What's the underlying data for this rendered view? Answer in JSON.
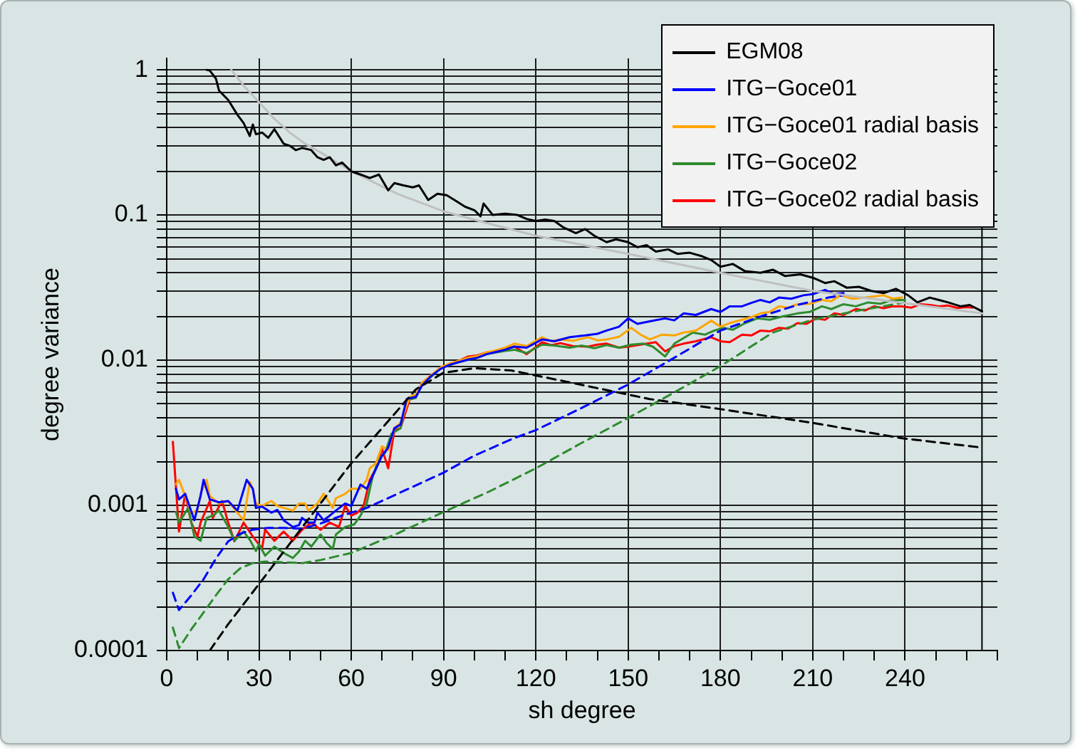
{
  "chart_data": {
    "type": "line",
    "xlabel": "sh degree",
    "ylabel": "degree variance",
    "series": [
      {
        "name": "EGM08",
        "color": "#000000",
        "x": [
          13,
          14,
          16,
          17,
          20,
          23,
          25,
          27,
          28,
          29,
          31,
          33,
          35,
          38,
          40,
          42,
          44,
          47,
          49,
          51,
          53,
          55,
          57,
          60,
          63,
          66,
          69,
          72,
          74,
          77,
          80,
          82,
          85,
          88,
          91,
          94,
          97,
          100,
          102,
          103,
          106,
          110,
          114,
          117,
          120,
          123,
          126,
          129,
          133,
          136,
          139,
          143,
          146,
          150,
          153,
          156,
          159,
          163,
          166,
          170,
          174,
          177,
          180,
          184,
          188,
          193,
          197,
          201,
          206,
          210,
          214,
          217,
          221,
          225,
          229,
          233,
          237,
          241,
          244,
          248,
          251,
          254,
          258,
          261,
          265
        ],
        "values": [
          1.0,
          0.99,
          0.87,
          0.72,
          0.62,
          0.49,
          0.43,
          0.35,
          0.42,
          0.36,
          0.37,
          0.34,
          0.39,
          0.31,
          0.3,
          0.28,
          0.29,
          0.28,
          0.25,
          0.24,
          0.25,
          0.22,
          0.23,
          0.2,
          0.19,
          0.18,
          0.19,
          0.148,
          0.166,
          0.16,
          0.155,
          0.16,
          0.127,
          0.14,
          0.137,
          0.125,
          0.114,
          0.108,
          0.098,
          0.12,
          0.1,
          0.102,
          0.1,
          0.094,
          0.091,
          0.093,
          0.091,
          0.082,
          0.075,
          0.08,
          0.072,
          0.065,
          0.068,
          0.065,
          0.06,
          0.062,
          0.056,
          0.058,
          0.054,
          0.055,
          0.052,
          0.049,
          0.044,
          0.046,
          0.041,
          0.04,
          0.042,
          0.038,
          0.039,
          0.037,
          0.034,
          0.035,
          0.0316,
          0.032,
          0.03,
          0.029,
          0.031,
          0.028,
          0.025,
          0.027,
          0.026,
          0.025,
          0.0235,
          0.024,
          0.0217
        ]
      },
      {
        "color": "#c0c0c0",
        "x": [
          21,
          25,
          30,
          35,
          40,
          45,
          50,
          60,
          75,
          90,
          105,
          120,
          150,
          180,
          210,
          240,
          265
        ],
        "values": [
          1.0,
          0.78,
          0.6,
          0.46,
          0.37,
          0.31,
          0.27,
          0.2,
          0.14,
          0.106,
          0.087,
          0.072,
          0.054,
          0.04,
          0.03,
          0.0247,
          0.021
        ]
      },
      {
        "color": "#000000",
        "line_style": "dashed",
        "x": [
          14,
          20,
          30,
          45,
          60,
          70,
          81,
          90,
          100,
          112,
          130,
          157,
          180,
          210,
          239,
          265
        ],
        "values": [
          0.0001,
          0.000152,
          0.000287,
          0.00075,
          0.00195,
          0.0034,
          0.0063,
          0.0082,
          0.0088,
          0.0085,
          0.0071,
          0.0054,
          0.0046,
          0.0037,
          0.0029,
          0.0025
        ]
      },
      {
        "name": "ITG−Goce01",
        "color": "#0000ff",
        "x": [
          3,
          4,
          6,
          9,
          11,
          12,
          14,
          17,
          20,
          23,
          26,
          28,
          29,
          31,
          34,
          36,
          38,
          41,
          43,
          44,
          46,
          48,
          49,
          51,
          53,
          55,
          58,
          60,
          63,
          65,
          67,
          70,
          72,
          74,
          76,
          78,
          81,
          83,
          86,
          89,
          92,
          95,
          98,
          101,
          104,
          107,
          110,
          113,
          117,
          122,
          126,
          131,
          136,
          140,
          143,
          147,
          150,
          153,
          157,
          162,
          165,
          168,
          172,
          177,
          180,
          183,
          187,
          190,
          193,
          196,
          199,
          203,
          207,
          210,
          214,
          217,
          220
        ],
        "values": [
          0.0013,
          0.0011,
          0.0012,
          0.00079,
          0.00116,
          0.0015,
          0.0011,
          0.00105,
          0.00107,
          0.00092,
          0.0015,
          0.0013,
          0.00096,
          0.00098,
          0.00089,
          0.00093,
          0.00079,
          0.00071,
          0.00073,
          0.00082,
          0.00076,
          0.00076,
          0.00089,
          0.00079,
          0.00085,
          0.00092,
          0.00103,
          0.00099,
          0.00139,
          0.0013,
          0.0016,
          0.0022,
          0.0025,
          0.0034,
          0.0036,
          0.0054,
          0.0056,
          0.0067,
          0.0078,
          0.0087,
          0.0093,
          0.0097,
          0.0101,
          0.0104,
          0.011,
          0.0114,
          0.0118,
          0.0124,
          0.0122,
          0.0139,
          0.0135,
          0.0144,
          0.0148,
          0.0152,
          0.016,
          0.017,
          0.0194,
          0.0178,
          0.0185,
          0.0194,
          0.0188,
          0.021,
          0.0205,
          0.0225,
          0.0215,
          0.0235,
          0.0235,
          0.0248,
          0.026,
          0.025,
          0.027,
          0.0265,
          0.028,
          0.0285,
          0.0305,
          0.0285,
          0.029
        ]
      },
      {
        "color": "#0000ff",
        "line_style": "dashed",
        "x": [
          2,
          4,
          8,
          12,
          16,
          20,
          24,
          28,
          33,
          38,
          44,
          50,
          57,
          65,
          75,
          90,
          100,
          112,
          120,
          135,
          150,
          165,
          180,
          193,
          205,
          215,
          220
        ],
        "values": [
          0.00025,
          0.00019,
          0.00024,
          0.00031,
          0.00043,
          0.000565,
          0.00064,
          0.00068,
          0.0007,
          0.0007,
          0.00069,
          0.00075,
          0.00085,
          0.00096,
          0.0012,
          0.00168,
          0.0022,
          0.00285,
          0.0033,
          0.0047,
          0.0068,
          0.0104,
          0.016,
          0.02,
          0.024,
          0.027,
          0.028
        ]
      },
      {
        "name": "ITG−Goce01 radial basis",
        "color": "#ffa500",
        "x": [
          3,
          4,
          6,
          8,
          10,
          11,
          13,
          14,
          17,
          20,
          23,
          25,
          27,
          28,
          29,
          31,
          34,
          36,
          38,
          41,
          43,
          45,
          46,
          48,
          49,
          51,
          54,
          55,
          58,
          60,
          63,
          65,
          66,
          68,
          70,
          72,
          74,
          76,
          79,
          81,
          83,
          86,
          89,
          92,
          95,
          98,
          101,
          104,
          107,
          110,
          113,
          117,
          122,
          125,
          128,
          132,
          137,
          140,
          143,
          147,
          151,
          154,
          157,
          161,
          165,
          168,
          172,
          177,
          180,
          183,
          187,
          190,
          193,
          196,
          199,
          202,
          205,
          209,
          213,
          216,
          219,
          223,
          227,
          230,
          233,
          236,
          239
        ],
        "values": [
          0.0014,
          0.0015,
          0.00116,
          0.00089,
          0.00092,
          0.0012,
          0.0015,
          0.00116,
          0.00103,
          0.00107,
          0.00089,
          0.00079,
          0.00145,
          0.0013,
          0.00103,
          0.00099,
          0.00107,
          0.00099,
          0.00096,
          0.00092,
          0.00103,
          0.00103,
          0.00092,
          0.00099,
          0.00103,
          0.0012,
          0.00096,
          0.00112,
          0.0012,
          0.0013,
          0.0013,
          0.0015,
          0.0018,
          0.00195,
          0.00255,
          0.0024,
          0.0034,
          0.0037,
          0.0056,
          0.0058,
          0.007,
          0.0079,
          0.0089,
          0.0095,
          0.0099,
          0.0104,
          0.0107,
          0.0113,
          0.0117,
          0.0122,
          0.013,
          0.0125,
          0.0144,
          0.0135,
          0.0139,
          0.0136,
          0.0144,
          0.0137,
          0.0139,
          0.0145,
          0.0167,
          0.015,
          0.0139,
          0.015,
          0.0148,
          0.0155,
          0.016,
          0.0187,
          0.017,
          0.018,
          0.019,
          0.0198,
          0.021,
          0.0215,
          0.0235,
          0.023,
          0.0243,
          0.0245,
          0.026,
          0.0255,
          0.028,
          0.0265,
          0.027,
          0.0275,
          0.028,
          0.0265,
          0.027
        ]
      },
      {
        "name": "ITG−Goce02",
        "color": "#2e8b2e",
        "x": [
          3,
          4,
          7,
          9,
          11,
          13,
          15,
          17,
          20,
          22,
          25,
          27,
          29,
          30,
          32,
          35,
          38,
          41,
          43,
          45,
          47,
          50,
          52,
          54,
          55,
          58,
          61,
          63,
          65,
          67,
          69,
          71,
          73,
          76,
          78,
          81,
          83,
          86,
          89,
          92,
          95,
          98,
          101,
          104,
          107,
          110,
          113,
          117,
          122,
          126,
          131,
          135,
          139,
          143,
          147,
          151,
          155,
          158,
          162,
          165,
          168,
          171,
          175,
          178,
          181,
          184,
          188,
          192,
          196,
          200,
          205,
          209,
          213,
          216,
          220,
          224,
          228,
          232,
          236,
          240
        ],
        "values": [
          0.0009,
          0.00076,
          0.00096,
          0.00061,
          0.00057,
          0.00082,
          0.00085,
          0.00092,
          0.00071,
          0.00057,
          0.00066,
          0.00058,
          0.000485,
          0.00054,
          0.00045,
          0.00052,
          0.00047,
          0.000434,
          0.00048,
          0.00057,
          0.00052,
          0.00063,
          0.00055,
          0.0005,
          0.00063,
          0.00071,
          0.00074,
          0.00085,
          0.00103,
          0.0016,
          0.0021,
          0.0023,
          0.0031,
          0.0034,
          0.0053,
          0.0055,
          0.0069,
          0.0077,
          0.0088,
          0.0093,
          0.0097,
          0.0101,
          0.0104,
          0.011,
          0.0113,
          0.0116,
          0.0118,
          0.0112,
          0.0128,
          0.0126,
          0.0122,
          0.0126,
          0.0121,
          0.0127,
          0.0122,
          0.0128,
          0.013,
          0.0124,
          0.0106,
          0.013,
          0.0142,
          0.0155,
          0.015,
          0.016,
          0.0167,
          0.0162,
          0.018,
          0.0194,
          0.019,
          0.02,
          0.021,
          0.0215,
          0.0235,
          0.0225,
          0.0243,
          0.0235,
          0.025,
          0.0245,
          0.026,
          0.026
        ]
      },
      {
        "color": "#2e8b2e",
        "line_style": "dashed",
        "x": [
          2,
          4,
          8,
          12,
          16,
          20,
          24,
          28,
          32,
          38,
          44,
          50,
          60,
          75,
          90,
          105,
          120,
          135,
          150,
          165,
          180,
          197,
          210,
          225,
          240
        ],
        "values": [
          0.000144,
          0.000104,
          0.00014,
          0.000183,
          0.00024,
          0.00031,
          0.00037,
          0.0004,
          0.00041,
          0.000405,
          0.0004,
          0.00042,
          0.00047,
          0.00064,
          0.0009,
          0.00125,
          0.0018,
          0.0027,
          0.004,
          0.006,
          0.0091,
          0.0155,
          0.019,
          0.022,
          0.025
        ]
      },
      {
        "name": "ITG−Goce02 radial basis",
        "color": "#ff0000",
        "x": [
          2,
          4,
          6,
          8,
          10,
          11,
          14,
          15,
          18,
          20,
          22,
          25,
          28,
          31,
          32,
          35,
          38,
          41,
          44,
          47,
          50,
          53,
          56,
          58,
          60,
          62,
          64,
          66,
          68,
          70,
          72,
          74,
          76,
          79,
          81,
          83,
          86,
          89,
          92,
          95,
          98,
          101,
          104,
          107,
          110,
          113,
          117,
          122,
          125,
          128,
          132,
          137,
          140,
          143,
          147,
          150,
          154,
          159,
          162,
          165,
          168,
          172,
          177,
          180,
          183,
          187,
          190,
          193,
          196,
          199,
          202,
          205,
          208,
          211,
          214,
          217,
          220,
          224,
          227,
          230,
          233,
          236,
          239,
          242,
          245,
          248,
          251,
          254,
          257,
          260,
          262
        ],
        "values": [
          0.00274,
          0.00066,
          0.0012,
          0.00076,
          0.00061,
          0.00076,
          0.00107,
          0.00082,
          0.00107,
          0.00076,
          0.000565,
          0.00076,
          0.00061,
          0.000505,
          0.00068,
          0.00057,
          0.00066,
          0.00057,
          0.00068,
          0.00076,
          0.00068,
          0.00076,
          0.00071,
          0.00099,
          0.00085,
          0.00089,
          0.00099,
          0.0015,
          0.0018,
          0.00245,
          0.0018,
          0.0033,
          0.0034,
          0.0054,
          0.0056,
          0.007,
          0.0078,
          0.0089,
          0.0094,
          0.0099,
          0.0106,
          0.0108,
          0.0113,
          0.0115,
          0.012,
          0.0124,
          0.011,
          0.0133,
          0.0127,
          0.0131,
          0.0125,
          0.0124,
          0.0128,
          0.013,
          0.0122,
          0.0124,
          0.0128,
          0.0133,
          0.0115,
          0.0125,
          0.013,
          0.0135,
          0.0144,
          0.0135,
          0.0133,
          0.015,
          0.0148,
          0.016,
          0.0158,
          0.0167,
          0.0165,
          0.018,
          0.0178,
          0.0194,
          0.019,
          0.021,
          0.0205,
          0.0225,
          0.022,
          0.0235,
          0.0228,
          0.0235,
          0.0235,
          0.023,
          0.0243,
          0.024,
          0.0235,
          0.0238,
          0.0229,
          0.0232,
          0.023
        ]
      }
    ],
    "xlim": [
      0,
      270
    ],
    "xticks": [
      0,
      {
        "value": 10,
        "label": null
      },
      {
        "value": 20,
        "label": null
      },
      30,
      {
        "value": 40,
        "label": null
      },
      {
        "value": 50,
        "label": null
      },
      60,
      {
        "value": 70,
        "label": null
      },
      {
        "value": 80,
        "label": null
      },
      90,
      {
        "value": 100,
        "label": null
      },
      {
        "value": 110,
        "label": null
      },
      120,
      {
        "value": 130,
        "label": null
      },
      {
        "value": 140,
        "label": null
      },
      150,
      {
        "value": 160,
        "label": null
      },
      {
        "value": 170,
        "label": null
      },
      180,
      {
        "value": 190,
        "label": null
      },
      {
        "value": 200,
        "label": null
      },
      210,
      {
        "value": 220,
        "label": null
      },
      {
        "value": 230,
        "label": null
      },
      240,
      {
        "value": 250,
        "label": null
      },
      {
        "value": 260,
        "label": null
      },
      {
        "value": 270,
        "label": null
      }
    ],
    "ylim": [
      0.0001,
      1.2
    ],
    "yticks": [
      0.0001,
      {
        "value": 0.0002,
        "label": null
      },
      {
        "value": 0.0003,
        "label": null
      },
      {
        "value": 0.0004,
        "label": null
      },
      {
        "value": 0.0005,
        "label": null
      },
      {
        "value": 0.0006,
        "label": null
      },
      {
        "value": 0.0007,
        "label": null
      },
      {
        "value": 0.0008,
        "label": null
      },
      {
        "value": 0.0009,
        "label": null
      },
      0.001,
      {
        "value": 0.002,
        "label": null
      },
      {
        "value": 0.003,
        "label": null
      },
      {
        "value": 0.004,
        "label": null
      },
      {
        "value": 0.005,
        "label": null
      },
      {
        "value": 0.006,
        "label": null
      },
      {
        "value": 0.007,
        "label": null
      },
      {
        "value": 0.008,
        "label": null
      },
      {
        "value": 0.009,
        "label": null
      },
      0.01,
      {
        "value": 0.02,
        "label": null
      },
      {
        "value": 0.03,
        "label": null
      },
      {
        "value": 0.04,
        "label": null
      },
      {
        "value": 0.05,
        "label": null
      },
      {
        "value": 0.06,
        "label": null
      },
      {
        "value": 0.07,
        "label": null
      },
      {
        "value": 0.08,
        "label": null
      },
      {
        "value": 0.09,
        "label": null
      },
      0.1,
      {
        "value": 0.2,
        "label": null
      },
      {
        "value": 0.3,
        "label": null
      },
      {
        "value": 0.4,
        "label": null
      },
      {
        "value": 0.5,
        "label": null
      },
      {
        "value": 0.6,
        "label": null
      },
      {
        "value": 0.7,
        "label": null
      },
      {
        "value": 0.8,
        "label": null
      },
      {
        "value": 0.9,
        "label": null
      },
      1
    ],
    "ref_lines": [
      {
        "axis": "x",
        "value": 265,
        "color": "#000000"
      }
    ],
    "log": "y",
    "grid": true,
    "legend": "top right"
  }
}
